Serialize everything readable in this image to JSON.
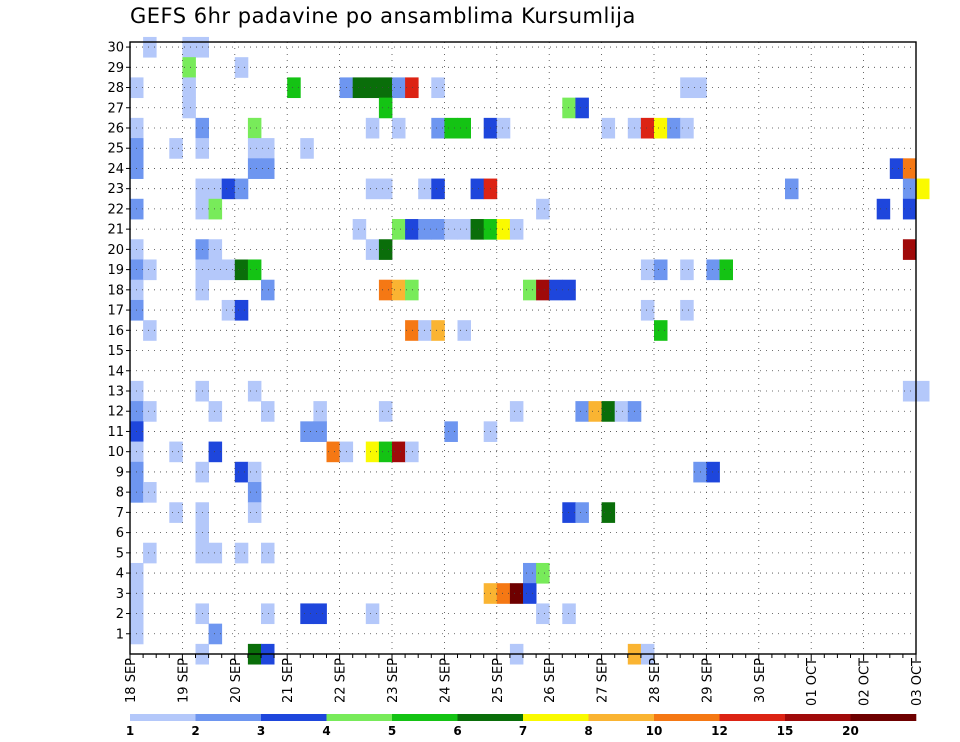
{
  "chart_data": {
    "type": "heatmap",
    "title": "GEFS 6hr padavine po ansamblima Kursumlija",
    "xlabel": "",
    "ylabel": "",
    "ylim": [
      0,
      30
    ],
    "y_ticks": [
      "1",
      "2",
      "3",
      "4",
      "5",
      "6",
      "7",
      "8",
      "9",
      "10",
      "11",
      "12",
      "13",
      "14",
      "15",
      "16",
      "17",
      "18",
      "19",
      "20",
      "21",
      "22",
      "23",
      "24",
      "25",
      "26",
      "27",
      "28",
      "29",
      "30"
    ],
    "x_ticks": [
      "18 SEP",
      "19 SEP",
      "20 SEP",
      "21 SEP",
      "22 SEP",
      "23 SEP",
      "24 SEP",
      "25 SEP",
      "26 SEP",
      "27 SEP",
      "28 SEP",
      "29 SEP",
      "30 SEP",
      "01 OCT",
      "02 OCT",
      "03 OCT"
    ],
    "steps_per_day": 4,
    "grid": true,
    "legend": {
      "placement": "bottom",
      "labels": [
        "1",
        "2",
        "3",
        "4",
        "5",
        "6",
        "7",
        "8",
        "10",
        "12",
        "15",
        "20"
      ],
      "colors": [
        "#b4c8fa",
        "#6e96f0",
        "#1e46dc",
        "#78eb5a",
        "#14c314",
        "#0a6e0a",
        "#fafa00",
        "#fab432",
        "#f57814",
        "#dc2314",
        "#a00a0a",
        "#6e0000"
      ]
    },
    "cells": [
      [
        30,
        1,
        0
      ],
      [
        30,
        4,
        0
      ],
      [
        30,
        5,
        0
      ],
      [
        29,
        4,
        3
      ],
      [
        29,
        8,
        0
      ],
      [
        28,
        0,
        0
      ],
      [
        28,
        4,
        0
      ],
      [
        28,
        12,
        4
      ],
      [
        28,
        16,
        1
      ],
      [
        28,
        17,
        5
      ],
      [
        28,
        18,
        5
      ],
      [
        28,
        19,
        5
      ],
      [
        28,
        20,
        1
      ],
      [
        28,
        21,
        9
      ],
      [
        28,
        23,
        0
      ],
      [
        28,
        42,
        0
      ],
      [
        28,
        43,
        0
      ],
      [
        27,
        4,
        0
      ],
      [
        27,
        19,
        4
      ],
      [
        27,
        33,
        3
      ],
      [
        27,
        34,
        2
      ],
      [
        26,
        0,
        0
      ],
      [
        26,
        5,
        1
      ],
      [
        26,
        9,
        3
      ],
      [
        26,
        18,
        0
      ],
      [
        26,
        20,
        0
      ],
      [
        26,
        23,
        1
      ],
      [
        26,
        24,
        4
      ],
      [
        26,
        25,
        4
      ],
      [
        26,
        27,
        2
      ],
      [
        26,
        28,
        0
      ],
      [
        26,
        36,
        0
      ],
      [
        26,
        38,
        0
      ],
      [
        26,
        39,
        9
      ],
      [
        26,
        40,
        6
      ],
      [
        26,
        41,
        1
      ],
      [
        26,
        42,
        0
      ],
      [
        25,
        0,
        1
      ],
      [
        25,
        3,
        0
      ],
      [
        25,
        5,
        0
      ],
      [
        25,
        9,
        0
      ],
      [
        25,
        10,
        0
      ],
      [
        25,
        13,
        0
      ],
      [
        24,
        0,
        1
      ],
      [
        24,
        9,
        1
      ],
      [
        24,
        10,
        1
      ],
      [
        24,
        58,
        2
      ],
      [
        24,
        59,
        8
      ],
      [
        23,
        5,
        0
      ],
      [
        23,
        6,
        0
      ],
      [
        23,
        7,
        2
      ],
      [
        23,
        8,
        1
      ],
      [
        23,
        18,
        0
      ],
      [
        23,
        19,
        0
      ],
      [
        23,
        22,
        0
      ],
      [
        23,
        23,
        2
      ],
      [
        23,
        26,
        2
      ],
      [
        23,
        27,
        9
      ],
      [
        23,
        50,
        1
      ],
      [
        23,
        59,
        1
      ],
      [
        23,
        60,
        6
      ],
      [
        22,
        0,
        1
      ],
      [
        22,
        5,
        0
      ],
      [
        22,
        6,
        3
      ],
      [
        22,
        31,
        0
      ],
      [
        22,
        57,
        2
      ],
      [
        22,
        59,
        2
      ],
      [
        21,
        17,
        0
      ],
      [
        21,
        20,
        3
      ],
      [
        21,
        21,
        2
      ],
      [
        21,
        22,
        1
      ],
      [
        21,
        23,
        1
      ],
      [
        21,
        24,
        0
      ],
      [
        21,
        25,
        0
      ],
      [
        21,
        26,
        5
      ],
      [
        21,
        27,
        4
      ],
      [
        21,
        28,
        6
      ],
      [
        21,
        29,
        0
      ],
      [
        20,
        0,
        0
      ],
      [
        20,
        5,
        1
      ],
      [
        20,
        6,
        0
      ],
      [
        20,
        18,
        0
      ],
      [
        20,
        19,
        5
      ],
      [
        20,
        59,
        10
      ],
      [
        19,
        0,
        1
      ],
      [
        19,
        1,
        0
      ],
      [
        19,
        5,
        0
      ],
      [
        19,
        6,
        0
      ],
      [
        19,
        7,
        0
      ],
      [
        19,
        8,
        5
      ],
      [
        19,
        9,
        4
      ],
      [
        19,
        39,
        0
      ],
      [
        19,
        40,
        1
      ],
      [
        19,
        42,
        0
      ],
      [
        19,
        44,
        1
      ],
      [
        19,
        45,
        4
      ],
      [
        18,
        0,
        0
      ],
      [
        18,
        5,
        0
      ],
      [
        18,
        10,
        1
      ],
      [
        18,
        19,
        8
      ],
      [
        18,
        20,
        7
      ],
      [
        18,
        21,
        3
      ],
      [
        18,
        30,
        3
      ],
      [
        18,
        31,
        10
      ],
      [
        18,
        32,
        2
      ],
      [
        18,
        33,
        2
      ],
      [
        17,
        0,
        1
      ],
      [
        17,
        7,
        0
      ],
      [
        17,
        8,
        2
      ],
      [
        17,
        39,
        0
      ],
      [
        17,
        42,
        0
      ],
      [
        16,
        1,
        0
      ],
      [
        16,
        21,
        8
      ],
      [
        16,
        22,
        0
      ],
      [
        16,
        23,
        7
      ],
      [
        16,
        25,
        0
      ],
      [
        16,
        40,
        4
      ],
      [
        13,
        0,
        0
      ],
      [
        13,
        5,
        0
      ],
      [
        13,
        9,
        0
      ],
      [
        13,
        59,
        0
      ],
      [
        13,
        60,
        0
      ],
      [
        12,
        0,
        1
      ],
      [
        12,
        1,
        0
      ],
      [
        12,
        6,
        0
      ],
      [
        12,
        10,
        0
      ],
      [
        12,
        14,
        0
      ],
      [
        12,
        19,
        0
      ],
      [
        12,
        29,
        0
      ],
      [
        12,
        34,
        1
      ],
      [
        12,
        35,
        7
      ],
      [
        12,
        36,
        5
      ],
      [
        12,
        37,
        0
      ],
      [
        12,
        38,
        1
      ],
      [
        11,
        0,
        2
      ],
      [
        11,
        13,
        1
      ],
      [
        11,
        14,
        1
      ],
      [
        11,
        24,
        1
      ],
      [
        11,
        27,
        0
      ],
      [
        10,
        0,
        0
      ],
      [
        10,
        3,
        0
      ],
      [
        10,
        6,
        2
      ],
      [
        10,
        15,
        8
      ],
      [
        10,
        16,
        0
      ],
      [
        10,
        18,
        6
      ],
      [
        10,
        19,
        4
      ],
      [
        10,
        20,
        10
      ],
      [
        10,
        21,
        0
      ],
      [
        9,
        0,
        1
      ],
      [
        9,
        5,
        0
      ],
      [
        9,
        8,
        2
      ],
      [
        9,
        9,
        0
      ],
      [
        9,
        43,
        1
      ],
      [
        9,
        44,
        2
      ],
      [
        8,
        0,
        1
      ],
      [
        8,
        1,
        0
      ],
      [
        8,
        9,
        1
      ],
      [
        7,
        3,
        0
      ],
      [
        7,
        5,
        0
      ],
      [
        7,
        9,
        0
      ],
      [
        7,
        33,
        2
      ],
      [
        7,
        34,
        1
      ],
      [
        7,
        36,
        5
      ],
      [
        6,
        5,
        0
      ],
      [
        5,
        1,
        0
      ],
      [
        5,
        5,
        0
      ],
      [
        5,
        6,
        0
      ],
      [
        5,
        8,
        0
      ],
      [
        5,
        10,
        0
      ],
      [
        4,
        0,
        0
      ],
      [
        4,
        30,
        1
      ],
      [
        4,
        31,
        3
      ],
      [
        3,
        0,
        0
      ],
      [
        3,
        27,
        7
      ],
      [
        3,
        28,
        8
      ],
      [
        3,
        29,
        11
      ],
      [
        3,
        30,
        2
      ],
      [
        2,
        0,
        0
      ],
      [
        2,
        5,
        0
      ],
      [
        2,
        10,
        0
      ],
      [
        2,
        13,
        2
      ],
      [
        2,
        14,
        2
      ],
      [
        2,
        18,
        0
      ],
      [
        2,
        31,
        0
      ],
      [
        2,
        33,
        0
      ],
      [
        1,
        0,
        0
      ],
      [
        1,
        6,
        1
      ],
      [
        0,
        5,
        0
      ],
      [
        0,
        9,
        5
      ],
      [
        0,
        10,
        2
      ],
      [
        0,
        29,
        0
      ],
      [
        0,
        38,
        7
      ],
      [
        0,
        39,
        0
      ]
    ]
  }
}
